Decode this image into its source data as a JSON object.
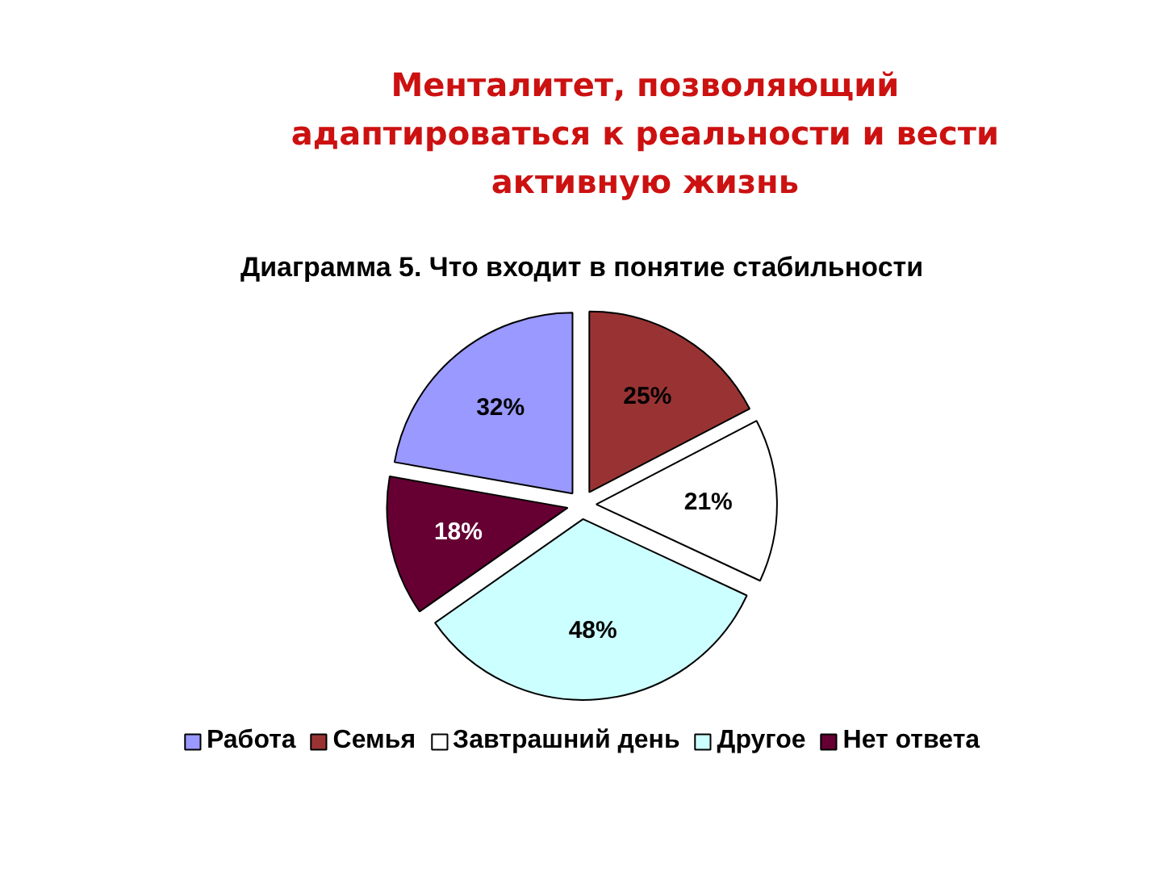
{
  "chart_data": {
    "type": "pie",
    "title": "Менталитет, позволяющий адаптироваться к реальности и вести активную жизнь",
    "subtitle": "Диаграмма 5. Что входит в понятие стабильности",
    "categories": [
      "Работа",
      "Семья",
      "Завтрашний день",
      "Другое",
      "Нет ответа"
    ],
    "values": [
      32,
      25,
      21,
      48,
      18
    ],
    "colors": [
      "#9999ff",
      "#993333",
      "#ffffff",
      "#ccffff",
      "#660033"
    ],
    "value_labels": [
      "32%",
      "25%",
      "21%",
      "48%",
      "18%"
    ],
    "legend": "bottom"
  }
}
